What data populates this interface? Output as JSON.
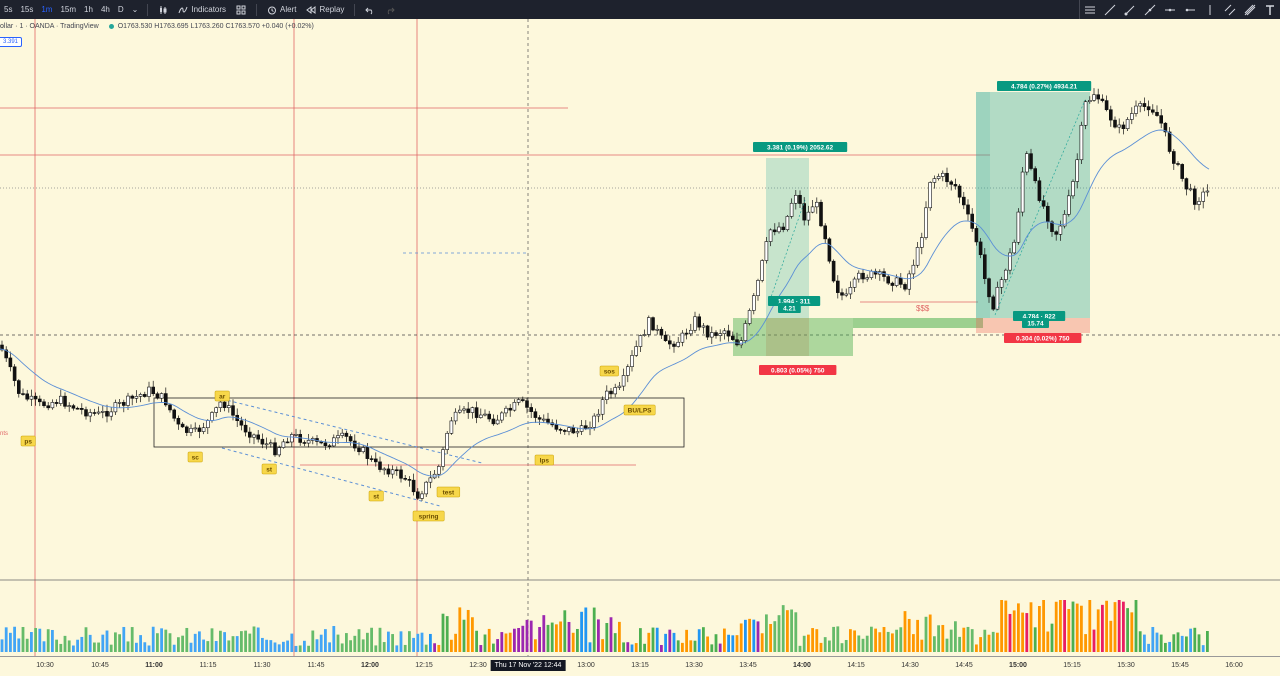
{
  "toolbar": {
    "timeframes": [
      "5s",
      "15s",
      "1m",
      "15m",
      "1h",
      "4h",
      "D"
    ],
    "active_timeframe": "1m",
    "indicators_label": "Indicators",
    "alert_label": "Alert",
    "replay_label": "Replay"
  },
  "legend": {
    "symbol": "ollar · 1 · OANDA · TradingView",
    "ohlc": "O1763.530 H1763.695 L1763.260 C1763.570 +0.040 (+0.02%)"
  },
  "ma_tag": "3.391",
  "annotations": {
    "long1_target": "3.381 (0.19%) 2052.62",
    "long1_mid": "1.994 · 311",
    "long1_mid2": "4.21",
    "long1_stop": "0.803 (0.05%) 750",
    "long2_target": "4.784 (0.27%) 4934.21",
    "long2_mid": "4.784 · 822",
    "long2_mid2": "15.74",
    "long2_stop": "0.304 (0.02%) 750",
    "sss": "$$$",
    "wyckoff": [
      "ps",
      "sc",
      "ar",
      "st",
      "st",
      "spring",
      "test",
      "lps",
      "sos",
      "BU/LPS"
    ],
    "left_note": "nts"
  },
  "xaxis": {
    "ticks": [
      "10:30",
      "10:45",
      "11:00",
      "11:15",
      "11:30",
      "11:45",
      "12:00",
      "12:15",
      "12:30",
      "13:00",
      "13:15",
      "13:30",
      "13:45",
      "14:00",
      "14:15",
      "14:30",
      "14:45",
      "15:00",
      "15:15",
      "15:30",
      "15:45",
      "16:00"
    ],
    "bold_ticks": [
      "11:00",
      "12:00",
      "14:00",
      "15:00"
    ],
    "cursor_label": "Thu 17 Nov '22   12:44"
  },
  "colors": {
    "background": "#fdf8dc",
    "up": "#ffffff",
    "down": "#000000",
    "ma": "#5b8fd6",
    "target_fill": "#26a69a",
    "stop_fill": "#ef5350",
    "vertical_line": "#e06666"
  },
  "chart_data": {
    "type": "candlestick",
    "symbol_source": "OANDA",
    "interval": "1m",
    "price_range": [
      1755,
      1770
    ],
    "series": [
      {
        "name": "price",
        "values": [
          1757.8,
          1757.3,
          1757.4,
          1757.2,
          1756.9,
          1756.6,
          1757.2,
          1757.0,
          1756.8,
          1757.4,
          1758.3,
          1759.6,
          1759.0,
          1759.8,
          1759.0,
          1759.5,
          1760.6,
          1759.9,
          1760.0,
          1758.7,
          1759.3,
          1762.2,
          1762.7,
          1764.7,
          1763.6,
          1762.5,
          1763.0,
          1762.2,
          1762.9,
          1764.8,
          1763.9,
          1762.6,
          1761.5,
          1763.2,
          1763.6
        ]
      }
    ]
  }
}
